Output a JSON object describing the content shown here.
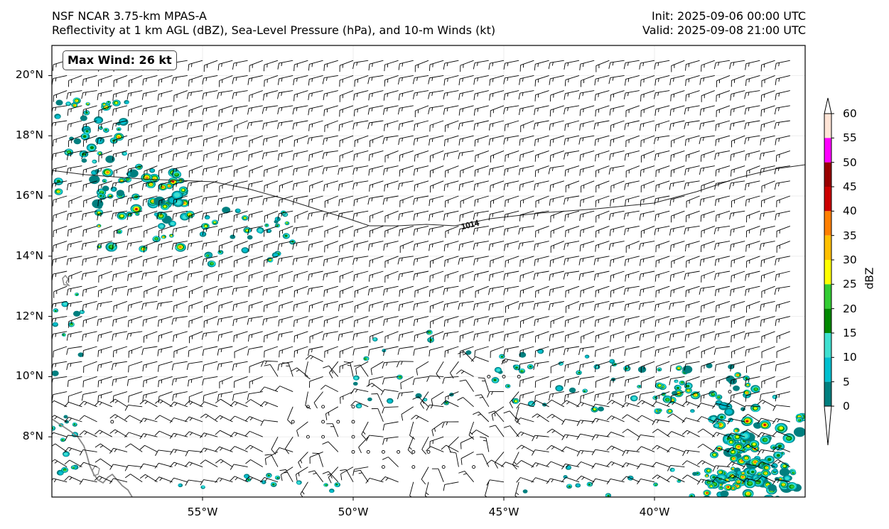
{
  "header": {
    "title_line1": "NSF NCAR 3.75-km MPAS-A",
    "title_line2": "Reflectivity at 1 km AGL (dBZ), Sea-Level Pressure (hPa), and 10-m Winds (kt)",
    "init": "Init: 2025-09-06 00:00 UTC",
    "valid": "Valid: 2025-09-08 21:00 UTC"
  },
  "map": {
    "max_wind_label": "Max Wind: 26 kt",
    "lat_range": [
      6,
      21
    ],
    "lon_range": [
      -60,
      -35
    ],
    "lat_labels": [
      "20°N",
      "18°N",
      "16°N",
      "14°N",
      "12°N",
      "10°N",
      "8°N"
    ],
    "lat_values": [
      20,
      18,
      16,
      14,
      12,
      10,
      8
    ],
    "lon_labels": [
      "55°W",
      "50°W",
      "45°W",
      "40°W"
    ],
    "lon_values": [
      -55,
      -50,
      -45,
      -40
    ],
    "isobar_label": "1014",
    "coastline_color": "#888888",
    "isobar_color": "#222222"
  },
  "colorbar": {
    "label": "dBZ",
    "ticks": [
      "60",
      "55",
      "50",
      "45",
      "40",
      "35",
      "30",
      "25",
      "20",
      "15",
      "10",
      "5",
      "0"
    ],
    "colors": [
      "#ffe4d6",
      "#ff00ff",
      "#990000",
      "#cc0000",
      "#ff7f00",
      "#ffbf00",
      "#ffff00",
      "#33cc33",
      "#008800",
      "#40e0d0",
      "#00bfcf",
      "#007f7f"
    ]
  }
}
